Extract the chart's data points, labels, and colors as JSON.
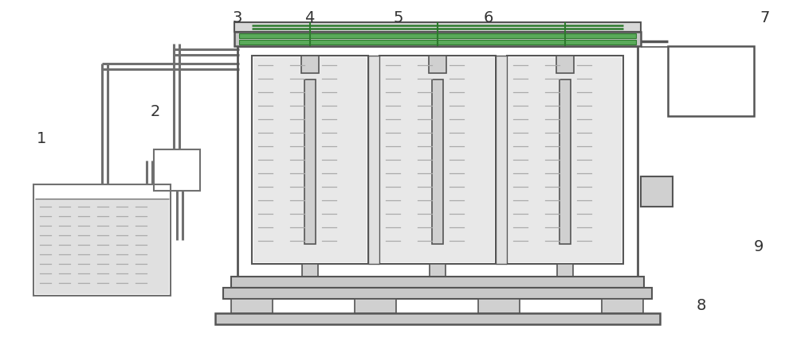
{
  "bg_color": "#ffffff",
  "lc": "#707070",
  "dc": "#555555",
  "gc": "#2d7a2d",
  "fig_width": 10.0,
  "fig_height": 4.24
}
